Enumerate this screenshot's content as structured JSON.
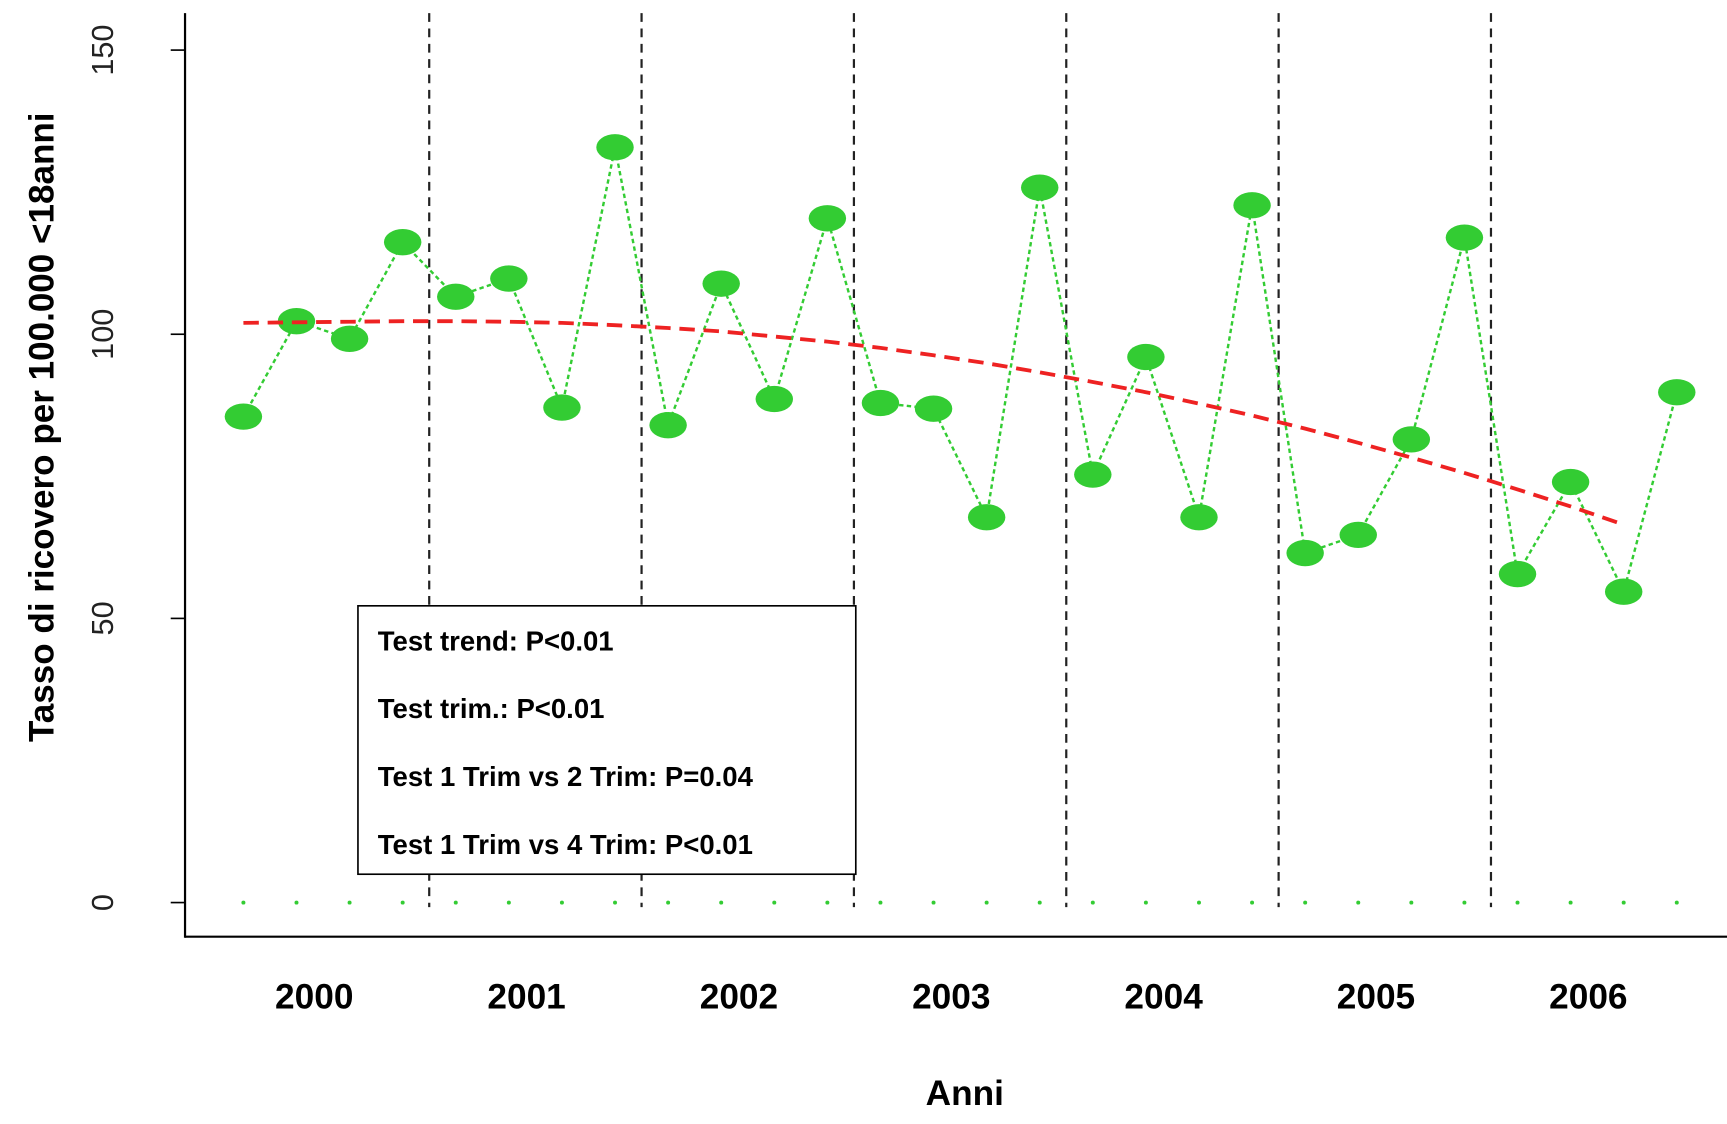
{
  "chart_data": {
    "type": "line",
    "y_label": "Tasso di ricovero per 100.000 <18anni",
    "x_label": "Anni",
    "year_labels": [
      "2000",
      "2001",
      "2002",
      "2003",
      "2004",
      "2005",
      "2006"
    ],
    "quarters_per_year": 4,
    "ylim": [
      -6,
      156.5
    ],
    "yticks": [
      0,
      50,
      100,
      150
    ],
    "series": [
      {
        "color": "#33cc33",
        "style": "points-dotted",
        "values": [
          85.5,
          102.3,
          99.2,
          116.2,
          106.6,
          109.8,
          87.1,
          132.9,
          84.0,
          108.9,
          88.6,
          120.4,
          87.9,
          86.9,
          67.8,
          125.8,
          75.3,
          96.0,
          67.8,
          122.7,
          61.5,
          64.7,
          81.5,
          117.0,
          57.8,
          74.0,
          54.7,
          89.8
        ]
      },
      {
        "color": "#ee2222",
        "style": "dashed",
        "values": [
          102.0,
          102.1,
          102.2,
          102.3,
          102.3,
          102.2,
          102.0,
          101.6,
          101.1,
          100.5,
          99.6,
          98.7,
          97.6,
          96.3,
          94.9,
          93.3,
          91.6,
          89.8,
          87.8,
          85.7,
          83.4,
          80.9,
          78.3,
          75.6,
          72.7,
          69.7,
          66.5,
          null
        ]
      },
      {
        "color": "#33cc33",
        "style": "dots",
        "values": [
          0,
          0,
          0,
          0,
          0,
          0,
          0,
          0,
          0,
          0,
          0,
          0,
          0,
          0,
          0,
          0,
          0,
          0,
          0,
          0,
          0,
          0,
          0,
          0,
          0,
          0,
          0,
          0
        ]
      }
    ],
    "annotations": [
      "Test trend: P<0.01",
      "Test trim.:  P<0.01",
      "Test 1 Trim vs 2 Trim: P=0.04",
      "Test 1 Trim vs 4 Trim: P<0.01"
    ]
  }
}
